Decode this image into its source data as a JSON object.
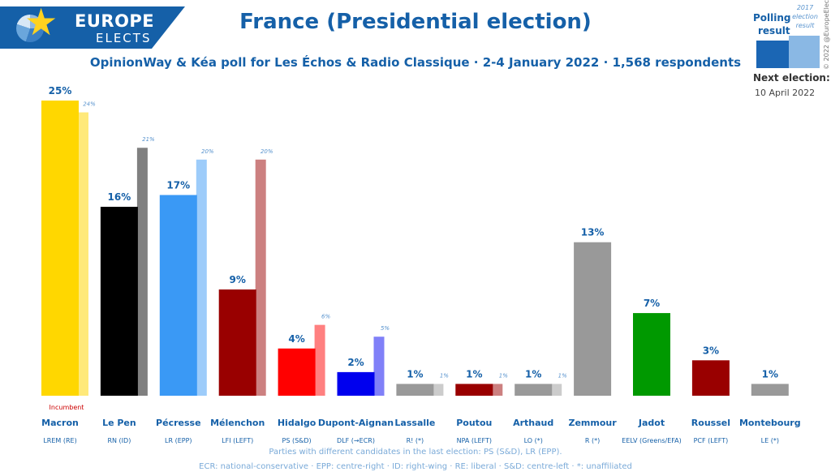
{
  "logo": {
    "line1": "EUROPE",
    "line2": "ELECTS"
  },
  "header": {
    "title": "France (Presidential election)",
    "subtitle": "OpinionWay & Kéa poll for Les Échos & Radio Classique · 2-4 January 2022 · 1,568 respondents"
  },
  "legend": {
    "poll_label_1": "Polling",
    "poll_label_2": "result",
    "prev_label_1": "2017",
    "prev_label_2": "election",
    "prev_label_3": "result",
    "next_label": "Next election:",
    "next_date": "10 April 2022",
    "copyright": "© 2022 @EuropeElects"
  },
  "footnotes": {
    "line1": "Parties with different candidates in the last election: PS (S&D), LR (EPP).",
    "line2": "ECR: national-conservative · EPP: centre-right · ID: right-wing · RE: liberal · S&D: centre-left · *: unaffiliated"
  },
  "chart_data": {
    "type": "bar",
    "title": "France (Presidential election)",
    "ylim": [
      0,
      25
    ],
    "grid": false,
    "incumbent_label": "Incumbent",
    "categories": [
      "Macron",
      "Le Pen",
      "Pécresse",
      "Mélenchon",
      "Hidalgo",
      "Dupont-Aignan",
      "Lassalle",
      "Poutou",
      "Arthaud",
      "Zemmour",
      "Jadot",
      "Roussel",
      "Montebourg"
    ],
    "parties": [
      "LREM (RE)",
      "RN (ID)",
      "LR (EPP)",
      "LFI (LEFT)",
      "PS (S&D)",
      "DLF (→ECR)",
      "R! (*)",
      "NPA (LEFT)",
      "LO (*)",
      "R (*)",
      "EELV (Greens/EFA)",
      "PCF (LEFT)",
      "LE (*)"
    ],
    "series": [
      {
        "name": "Polling result",
        "values": [
          25,
          16,
          17,
          9,
          4,
          2,
          1,
          1,
          1,
          13,
          7,
          3,
          1
        ],
        "labels": [
          "25%",
          "16%",
          "17%",
          "9%",
          "4%",
          "2%",
          "1%",
          "1%",
          "1%",
          "13%",
          "7%",
          "3%",
          "1%"
        ]
      },
      {
        "name": "2017 election result",
        "values": [
          24,
          21,
          20,
          20,
          6,
          5,
          1,
          1,
          1,
          null,
          null,
          null,
          null
        ],
        "labels": [
          "24%",
          "21%",
          "20%",
          "20%",
          "6%",
          "5%",
          "1%",
          "1%",
          "1%",
          "",
          "",
          "",
          ""
        ]
      }
    ],
    "colors": [
      "#ffd700",
      "#000000",
      "#3a99f5",
      "#990000",
      "#ff0000",
      "#0000ee",
      "#999999",
      "#990000",
      "#999999",
      "#999999",
      "#009900",
      "#990000",
      "#999999"
    ],
    "prev_colors": [
      "#ffe97a",
      "#808080",
      "#9dccfa",
      "#cc8080",
      "#ff8080",
      "#8080f8",
      "#cccccc",
      "#cc8080",
      "#cccccc",
      null,
      null,
      null,
      null
    ],
    "incumbent_index": 0
  }
}
